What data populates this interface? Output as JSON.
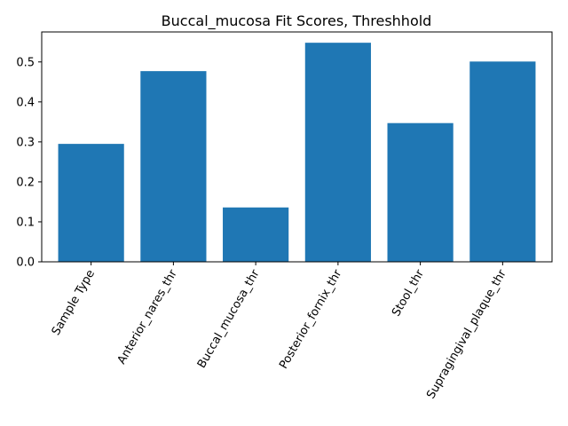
{
  "chart_data": {
    "type": "bar",
    "title": "Buccal_mucosa Fit Scores, Threshhold",
    "xlabel": "",
    "ylabel": "",
    "categories": [
      "Sample Type",
      "Anterior_nares_thr",
      "Buccal_mucosa_thr",
      "Posterior_fornix_thr",
      "Stool_thr",
      "Supragingival_plaque_thr"
    ],
    "values": [
      0.295,
      0.477,
      0.136,
      0.548,
      0.347,
      0.501
    ],
    "ylim": [
      0,
      0.575
    ],
    "yticks": [
      0.0,
      0.1,
      0.2,
      0.3,
      0.4,
      0.5
    ],
    "ytick_labels": [
      "0.0",
      "0.1",
      "0.2",
      "0.3",
      "0.4",
      "0.5"
    ],
    "bar_color": "#1f77b4",
    "grid": false,
    "legend": "none"
  }
}
